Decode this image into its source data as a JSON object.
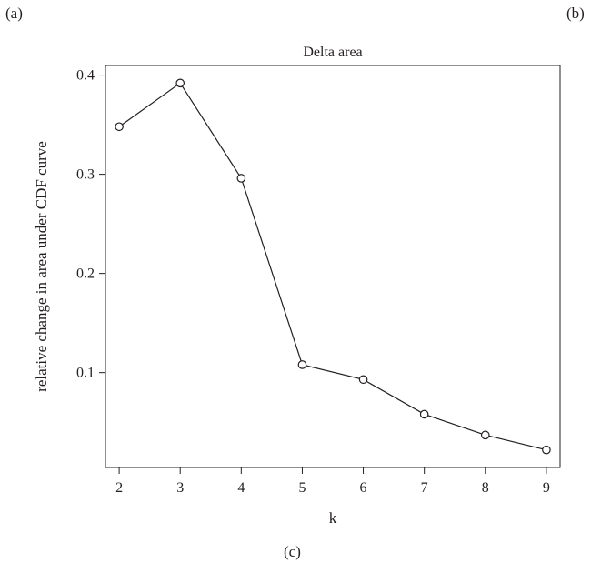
{
  "panel_labels": {
    "a": "(a)",
    "b": "(b)",
    "c": "(c)"
  },
  "chart_data": {
    "type": "line",
    "title": "Delta area",
    "xlabel": "k",
    "ylabel": "relative change in area under CDF curve",
    "x": [
      2,
      3,
      4,
      5,
      6,
      7,
      8,
      9
    ],
    "series": [
      {
        "values": [
          0.348,
          0.392,
          0.296,
          0.108,
          0.093,
          0.058,
          0.037,
          0.022
        ]
      }
    ],
    "x_ticks": [
      2,
      3,
      4,
      5,
      6,
      7,
      8,
      9
    ],
    "y_ticks": [
      "0.1",
      "0.2",
      "0.3",
      "0.4"
    ],
    "xlim": [
      1.775,
      9.225
    ],
    "ylim": [
      0.0043,
      0.4097
    ],
    "grid": false,
    "legend": "none",
    "marker": "open-circle",
    "line_color": "#231f20"
  }
}
